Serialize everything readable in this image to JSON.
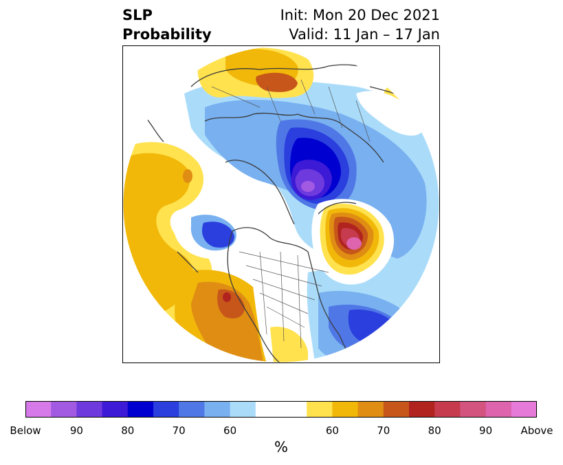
{
  "title": {
    "left_line1": "SLP",
    "left_line2": "Probability",
    "right_line1": "Init: Mon 20 Dec 2021",
    "right_line2": "Valid: 11 Jan – 17 Jan"
  },
  "colorbar": {
    "colors": [
      "#d57ae8",
      "#a25ae3",
      "#6e3add",
      "#3c1ad6",
      "#0000d0",
      "#2a3fdd",
      "#5077e6",
      "#78b0f0",
      "#aadcfa",
      "#ffffff",
      "#ffffff",
      "#ffe24e",
      "#f1b809",
      "#df8d13",
      "#c7561a",
      "#b0231f",
      "#c63c4e",
      "#d2547f",
      "#dd64ad",
      "#e57ad9"
    ],
    "tick_labels": [
      "Below",
      "90",
      "80",
      "70",
      "60",
      "",
      "60",
      "70",
      "80",
      "90",
      "Above"
    ],
    "unit": "%"
  },
  "map": {
    "land_color": "none",
    "coast_color": "#3a3a3a",
    "border_color": "#555555"
  }
}
